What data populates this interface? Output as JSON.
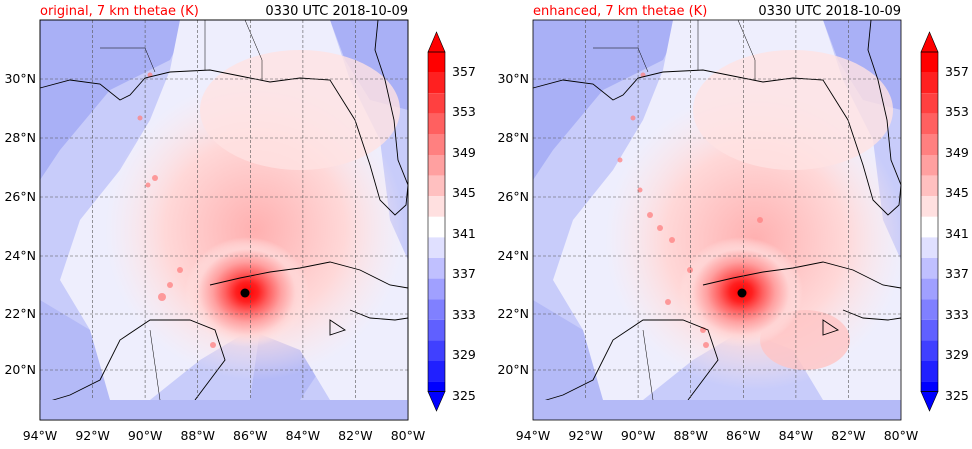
{
  "panels": [
    {
      "id": "original",
      "title_left": "original, 7 km thetae (K)",
      "title_right": "0330 UTC 2018-10-09",
      "storm_center": {
        "lon": -86.3,
        "lat": 22.7
      }
    },
    {
      "id": "enhanced",
      "title_left": "enhanced, 7 km thetae (K)",
      "title_right": "0330 UTC 2018-10-09",
      "storm_center": {
        "lon": -86.0,
        "lat": 22.7
      }
    }
  ],
  "map": {
    "lon_range": [
      -94,
      -80
    ],
    "lat_range": [
      18.2,
      32.0
    ],
    "lon_ticks": [
      "94°W",
      "92°W",
      "90°W",
      "88°W",
      "86°W",
      "84°W",
      "82°W",
      "80°W"
    ],
    "lat_ticks": [
      "30°N",
      "28°N",
      "26°N",
      "24°N",
      "22°N",
      "20°N"
    ],
    "gridlines": true
  },
  "colorbar": {
    "labels": [
      "357",
      "353",
      "349",
      "345",
      "341",
      "337",
      "333",
      "329",
      "325"
    ],
    "levels": [
      325,
      327,
      329,
      331,
      333,
      335,
      337,
      339,
      341,
      343,
      345,
      347,
      349,
      351,
      353,
      355,
      357
    ],
    "extend": "both",
    "colormap": "bwr"
  },
  "colors": {
    "title_left": "#ff0000",
    "title_right": "#000000"
  }
}
